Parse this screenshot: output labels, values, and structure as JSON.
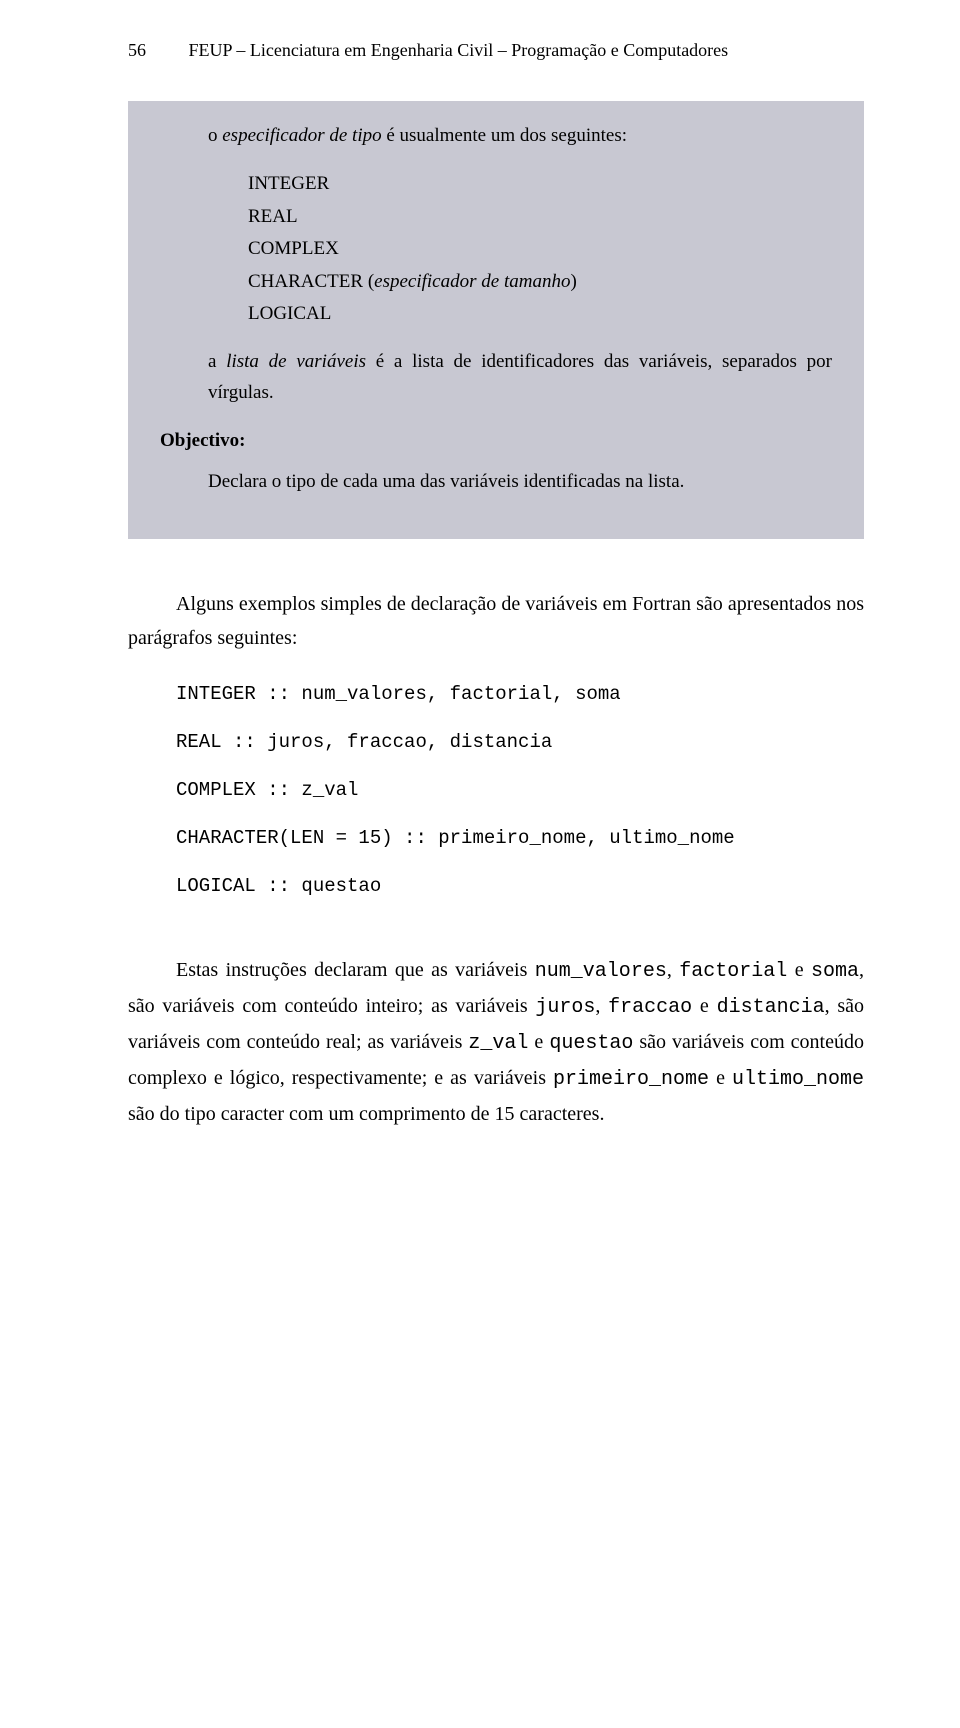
{
  "header": {
    "page_number": "56",
    "title": "FEUP – Licenciatura em Engenharia Civil – Programação e Computadores"
  },
  "box": {
    "intro_prefix": "o ",
    "intro_italic": "especificador de tipo",
    "intro_suffix": " é usualmente um dos seguintes:",
    "types": {
      "t1": "INTEGER",
      "t2": "REAL",
      "t3": "COMPLEX",
      "t4_a": "CHARACTER (",
      "t4_b": "especificador de tamanho",
      "t4_c": ")",
      "t5": "LOGICAL"
    },
    "list_desc_a": "a ",
    "list_desc_b": "lista de variáveis",
    "list_desc_c": " é a lista de identificadores das variáveis, separados por vírgulas.",
    "objective_label": "Objectivo:",
    "objective_text": "Declara o tipo de cada uma das variáveis identificadas na lista."
  },
  "para1": "Alguns exemplos simples de declaração de variáveis em Fortran são apresentados nos parágrafos seguintes:",
  "code": {
    "l1": "INTEGER :: num_valores, factorial, soma",
    "l2": "REAL :: juros, fraccao, distancia",
    "l3": "COMPLEX :: z_val",
    "l4": "CHARACTER(LEN = 15) :: primeiro_nome, ultimo_nome",
    "l5": "LOGICAL :: questao"
  },
  "p2": {
    "a": "Estas instruções declaram que as variáveis ",
    "b": "num_valores",
    "c": ", ",
    "d": "factorial",
    "e": " e ",
    "f": "soma",
    "g": ", são variáveis com conteúdo inteiro; as variáveis ",
    "h": "juros",
    "i": ", ",
    "j": "fraccao",
    "k": " e ",
    "l": "distancia",
    "m": ", são variáveis com conteúdo real; as variáveis ",
    "n": "z_val",
    "o": " e ",
    "p": "questao",
    "q": " são variáveis com conteúdo complexo e lógico, respectivamente; e as variáveis ",
    "r": "primeiro_nome",
    "s": " e ",
    "t": "ultimo_nome",
    "u": " são do tipo caracter com um comprimento de 15 caracteres."
  }
}
